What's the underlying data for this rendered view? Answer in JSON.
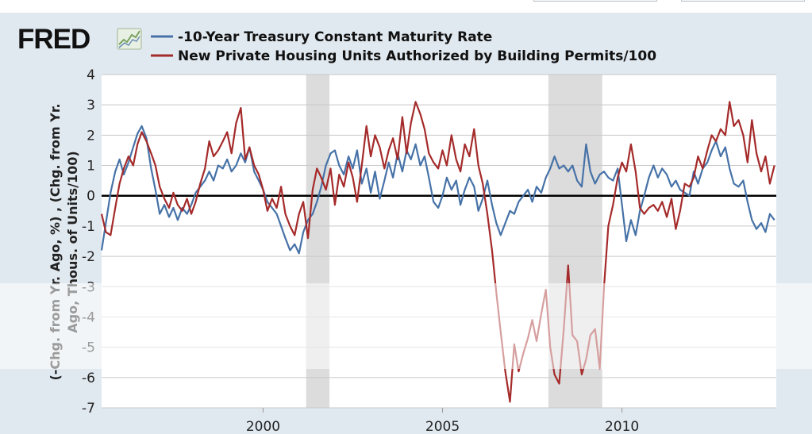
{
  "chart_data": {
    "type": "line",
    "title": "",
    "xlabel": "",
    "ylabel_lines": [
      "(-Chg. from Yr. Ago, %) , (Chg. from Yr.",
      "Ago, Thous. of Units/100)"
    ],
    "x_range": [
      1995.5,
      2014.3
    ],
    "ylim": [
      -7,
      4
    ],
    "yticks": [
      4,
      3,
      2,
      1,
      0,
      -1,
      -2,
      -3,
      -4,
      -5,
      -6,
      -7
    ],
    "xticks": [
      2000,
      2005,
      2010
    ],
    "xtick_labels": [
      "2000",
      "2005",
      "2010"
    ],
    "recessions": [
      [
        2001.2,
        2001.85
      ],
      [
        2007.95,
        2009.45
      ]
    ],
    "zero_line": true,
    "series": [
      {
        "name": "-10-Year Treasury Constant Maturity Rate",
        "color": "#4672a7",
        "points": [
          [
            1995.5,
            -1.8
          ],
          [
            1995.62,
            -0.9
          ],
          [
            1995.75,
            0.1
          ],
          [
            1995.88,
            0.8
          ],
          [
            1996.0,
            1.2
          ],
          [
            1996.12,
            0.7
          ],
          [
            1996.25,
            1.1
          ],
          [
            1996.38,
            1.6
          ],
          [
            1996.5,
            2.05
          ],
          [
            1996.62,
            2.3
          ],
          [
            1996.75,
            1.9
          ],
          [
            1996.88,
            0.9
          ],
          [
            1997.0,
            0.2
          ],
          [
            1997.12,
            -0.6
          ],
          [
            1997.25,
            -0.3
          ],
          [
            1997.38,
            -0.7
          ],
          [
            1997.5,
            -0.4
          ],
          [
            1997.62,
            -0.8
          ],
          [
            1997.75,
            -0.4
          ],
          [
            1997.88,
            -0.6
          ],
          [
            1998.0,
            -0.3
          ],
          [
            1998.12,
            0.1
          ],
          [
            1998.25,
            0.3
          ],
          [
            1998.38,
            0.5
          ],
          [
            1998.5,
            0.8
          ],
          [
            1998.62,
            0.5
          ],
          [
            1998.75,
            1.0
          ],
          [
            1998.88,
            0.9
          ],
          [
            1999.0,
            1.2
          ],
          [
            1999.12,
            0.8
          ],
          [
            1999.25,
            1.0
          ],
          [
            1999.38,
            1.4
          ],
          [
            1999.5,
            1.1
          ],
          [
            1999.62,
            1.6
          ],
          [
            1999.75,
            0.8
          ],
          [
            1999.88,
            0.5
          ],
          [
            2000.0,
            0.2
          ],
          [
            2000.12,
            -0.2
          ],
          [
            2000.25,
            -0.4
          ],
          [
            2000.38,
            -0.6
          ],
          [
            2000.5,
            -1.0
          ],
          [
            2000.62,
            -1.4
          ],
          [
            2000.75,
            -1.8
          ],
          [
            2000.88,
            -1.6
          ],
          [
            2001.0,
            -1.9
          ],
          [
            2001.12,
            -1.2
          ],
          [
            2001.25,
            -0.8
          ],
          [
            2001.38,
            -0.6
          ],
          [
            2001.5,
            -0.2
          ],
          [
            2001.62,
            0.3
          ],
          [
            2001.75,
            1.0
          ],
          [
            2001.88,
            1.4
          ],
          [
            2002.0,
            1.5
          ],
          [
            2002.12,
            1.0
          ],
          [
            2002.25,
            0.7
          ],
          [
            2002.38,
            1.3
          ],
          [
            2002.5,
            0.9
          ],
          [
            2002.62,
            1.5
          ],
          [
            2002.75,
            0.4
          ],
          [
            2002.88,
            0.9
          ],
          [
            2003.0,
            0.1
          ],
          [
            2003.12,
            0.8
          ],
          [
            2003.25,
            -0.1
          ],
          [
            2003.38,
            0.5
          ],
          [
            2003.5,
            1.1
          ],
          [
            2003.62,
            0.6
          ],
          [
            2003.75,
            1.4
          ],
          [
            2003.88,
            0.8
          ],
          [
            2004.0,
            1.5
          ],
          [
            2004.12,
            1.2
          ],
          [
            2004.25,
            1.7
          ],
          [
            2004.38,
            1.0
          ],
          [
            2004.5,
            1.3
          ],
          [
            2004.62,
            0.6
          ],
          [
            2004.75,
            -0.2
          ],
          [
            2004.88,
            -0.4
          ],
          [
            2005.0,
            0.0
          ],
          [
            2005.12,
            0.6
          ],
          [
            2005.25,
            0.2
          ],
          [
            2005.38,
            0.5
          ],
          [
            2005.5,
            -0.3
          ],
          [
            2005.62,
            0.2
          ],
          [
            2005.75,
            0.6
          ],
          [
            2005.88,
            0.3
          ],
          [
            2006.0,
            -0.5
          ],
          [
            2006.12,
            -0.1
          ],
          [
            2006.25,
            0.5
          ],
          [
            2006.38,
            -0.3
          ],
          [
            2006.5,
            -0.9
          ],
          [
            2006.62,
            -1.3
          ],
          [
            2006.75,
            -0.9
          ],
          [
            2006.88,
            -0.5
          ],
          [
            2007.0,
            -0.6
          ],
          [
            2007.12,
            -0.2
          ],
          [
            2007.25,
            0.0
          ],
          [
            2007.38,
            0.2
          ],
          [
            2007.5,
            -0.2
          ],
          [
            2007.62,
            0.3
          ],
          [
            2007.75,
            0.1
          ],
          [
            2007.88,
            0.6
          ],
          [
            2008.0,
            0.9
          ],
          [
            2008.12,
            1.3
          ],
          [
            2008.25,
            0.9
          ],
          [
            2008.38,
            1.0
          ],
          [
            2008.5,
            0.8
          ],
          [
            2008.62,
            1.0
          ],
          [
            2008.75,
            0.5
          ],
          [
            2008.88,
            0.3
          ],
          [
            2009.0,
            1.7
          ],
          [
            2009.12,
            0.8
          ],
          [
            2009.25,
            0.4
          ],
          [
            2009.38,
            0.7
          ],
          [
            2009.5,
            0.8
          ],
          [
            2009.62,
            0.6
          ],
          [
            2009.75,
            0.5
          ],
          [
            2009.88,
            0.9
          ],
          [
            2010.0,
            -0.3
          ],
          [
            2010.12,
            -1.5
          ],
          [
            2010.25,
            -0.8
          ],
          [
            2010.38,
            -1.3
          ],
          [
            2010.5,
            -0.5
          ],
          [
            2010.62,
            0.0
          ],
          [
            2010.75,
            0.6
          ],
          [
            2010.88,
            1.0
          ],
          [
            2011.0,
            0.6
          ],
          [
            2011.12,
            0.9
          ],
          [
            2011.25,
            0.7
          ],
          [
            2011.38,
            0.3
          ],
          [
            2011.5,
            0.5
          ],
          [
            2011.62,
            0.2
          ],
          [
            2011.75,
            0.1
          ],
          [
            2011.88,
            0.0
          ],
          [
            2012.0,
            0.8
          ],
          [
            2012.12,
            0.4
          ],
          [
            2012.25,
            0.9
          ],
          [
            2012.38,
            1.1
          ],
          [
            2012.5,
            1.5
          ],
          [
            2012.62,
            1.8
          ],
          [
            2012.75,
            1.3
          ],
          [
            2012.88,
            1.6
          ],
          [
            2013.0,
            0.9
          ],
          [
            2013.12,
            0.4
          ],
          [
            2013.25,
            0.3
          ],
          [
            2013.38,
            0.5
          ],
          [
            2013.5,
            -0.2
          ],
          [
            2013.62,
            -0.8
          ],
          [
            2013.75,
            -1.1
          ],
          [
            2013.88,
            -0.9
          ],
          [
            2014.0,
            -1.2
          ],
          [
            2014.12,
            -0.6
          ],
          [
            2014.25,
            -0.8
          ]
        ]
      },
      {
        "name": "New Private Housing Units Authorized by Building Permits/100",
        "color": "#a52a2a",
        "points": [
          [
            1995.5,
            -0.6
          ],
          [
            1995.62,
            -1.2
          ],
          [
            1995.75,
            -1.3
          ],
          [
            1995.88,
            -0.4
          ],
          [
            1996.0,
            0.4
          ],
          [
            1996.12,
            0.9
          ],
          [
            1996.25,
            1.3
          ],
          [
            1996.38,
            1.0
          ],
          [
            1996.5,
            1.7
          ],
          [
            1996.62,
            2.1
          ],
          [
            1996.75,
            1.8
          ],
          [
            1996.88,
            1.4
          ],
          [
            1997.0,
            1.0
          ],
          [
            1997.12,
            0.3
          ],
          [
            1997.25,
            -0.1
          ],
          [
            1997.38,
            -0.4
          ],
          [
            1997.5,
            0.1
          ],
          [
            1997.62,
            -0.3
          ],
          [
            1997.75,
            -0.5
          ],
          [
            1997.88,
            -0.1
          ],
          [
            1998.0,
            -0.6
          ],
          [
            1998.12,
            -0.2
          ],
          [
            1998.25,
            0.4
          ],
          [
            1998.38,
            0.9
          ],
          [
            1998.5,
            1.8
          ],
          [
            1998.62,
            1.3
          ],
          [
            1998.75,
            1.5
          ],
          [
            1998.88,
            1.8
          ],
          [
            1999.0,
            2.1
          ],
          [
            1999.12,
            1.4
          ],
          [
            1999.25,
            2.4
          ],
          [
            1999.38,
            2.9
          ],
          [
            1999.5,
            1.2
          ],
          [
            1999.62,
            1.6
          ],
          [
            1999.75,
            1.0
          ],
          [
            1999.88,
            0.7
          ],
          [
            2000.0,
            0.2
          ],
          [
            2000.12,
            -0.5
          ],
          [
            2000.25,
            -0.1
          ],
          [
            2000.38,
            -0.4
          ],
          [
            2000.5,
            0.3
          ],
          [
            2000.62,
            -0.6
          ],
          [
            2000.75,
            -1.0
          ],
          [
            2000.88,
            -1.3
          ],
          [
            2001.0,
            -0.6
          ],
          [
            2001.12,
            -0.2
          ],
          [
            2001.25,
            -1.4
          ],
          [
            2001.38,
            0.2
          ],
          [
            2001.5,
            0.9
          ],
          [
            2001.62,
            0.6
          ],
          [
            2001.75,
            0.2
          ],
          [
            2001.88,
            0.9
          ],
          [
            2002.0,
            -0.3
          ],
          [
            2002.12,
            0.7
          ],
          [
            2002.25,
            0.3
          ],
          [
            2002.38,
            1.1
          ],
          [
            2002.5,
            0.6
          ],
          [
            2002.62,
            -0.2
          ],
          [
            2002.75,
            1.0
          ],
          [
            2002.88,
            2.3
          ],
          [
            2003.0,
            1.3
          ],
          [
            2003.12,
            2.0
          ],
          [
            2003.25,
            1.6
          ],
          [
            2003.38,
            0.9
          ],
          [
            2003.5,
            1.5
          ],
          [
            2003.62,
            1.9
          ],
          [
            2003.75,
            1.2
          ],
          [
            2003.88,
            2.6
          ],
          [
            2004.0,
            1.4
          ],
          [
            2004.12,
            2.4
          ],
          [
            2004.25,
            3.1
          ],
          [
            2004.38,
            2.7
          ],
          [
            2004.5,
            2.2
          ],
          [
            2004.62,
            1.4
          ],
          [
            2004.75,
            1.1
          ],
          [
            2004.88,
            0.9
          ],
          [
            2005.0,
            1.5
          ],
          [
            2005.12,
            1.0
          ],
          [
            2005.25,
            2.0
          ],
          [
            2005.38,
            1.2
          ],
          [
            2005.5,
            0.8
          ],
          [
            2005.62,
            1.7
          ],
          [
            2005.75,
            1.3
          ],
          [
            2005.88,
            2.2
          ],
          [
            2006.0,
            1.0
          ],
          [
            2006.12,
            0.4
          ],
          [
            2006.25,
            -0.6
          ],
          [
            2006.38,
            -1.8
          ],
          [
            2006.5,
            -3.2
          ],
          [
            2006.62,
            -4.5
          ],
          [
            2006.75,
            -5.8
          ],
          [
            2006.88,
            -6.8
          ],
          [
            2007.0,
            -4.9
          ],
          [
            2007.12,
            -5.8
          ],
          [
            2007.25,
            -5.2
          ],
          [
            2007.38,
            -4.7
          ],
          [
            2007.5,
            -4.1
          ],
          [
            2007.62,
            -4.8
          ],
          [
            2007.75,
            -3.9
          ],
          [
            2007.88,
            -3.1
          ],
          [
            2008.0,
            -5.0
          ],
          [
            2008.12,
            -5.9
          ],
          [
            2008.25,
            -6.2
          ],
          [
            2008.38,
            -4.4
          ],
          [
            2008.5,
            -2.3
          ],
          [
            2008.62,
            -4.6
          ],
          [
            2008.75,
            -4.8
          ],
          [
            2008.88,
            -5.9
          ],
          [
            2009.0,
            -5.4
          ],
          [
            2009.12,
            -4.6
          ],
          [
            2009.25,
            -4.4
          ],
          [
            2009.38,
            -5.7
          ],
          [
            2009.5,
            -3.0
          ],
          [
            2009.62,
            -1.0
          ],
          [
            2009.75,
            -0.3
          ],
          [
            2009.88,
            0.6
          ],
          [
            2010.0,
            1.1
          ],
          [
            2010.12,
            0.8
          ],
          [
            2010.25,
            1.7
          ],
          [
            2010.38,
            0.8
          ],
          [
            2010.5,
            -0.4
          ],
          [
            2010.62,
            -0.6
          ],
          [
            2010.75,
            -0.4
          ],
          [
            2010.88,
            -0.3
          ],
          [
            2011.0,
            -0.5
          ],
          [
            2011.12,
            -0.2
          ],
          [
            2011.25,
            -0.7
          ],
          [
            2011.38,
            -0.1
          ],
          [
            2011.5,
            -1.1
          ],
          [
            2011.62,
            -0.5
          ],
          [
            2011.75,
            0.4
          ],
          [
            2011.88,
            0.3
          ],
          [
            2012.0,
            0.6
          ],
          [
            2012.12,
            1.3
          ],
          [
            2012.25,
            0.9
          ],
          [
            2012.38,
            1.5
          ],
          [
            2012.5,
            2.0
          ],
          [
            2012.62,
            1.8
          ],
          [
            2012.75,
            2.2
          ],
          [
            2012.88,
            2.0
          ],
          [
            2013.0,
            3.1
          ],
          [
            2013.12,
            2.3
          ],
          [
            2013.25,
            2.5
          ],
          [
            2013.38,
            2.0
          ],
          [
            2013.5,
            1.1
          ],
          [
            2013.62,
            2.5
          ],
          [
            2013.75,
            1.4
          ],
          [
            2013.88,
            0.8
          ],
          [
            2014.0,
            1.3
          ],
          [
            2014.12,
            0.4
          ],
          [
            2014.25,
            1.0
          ]
        ]
      }
    ]
  },
  "logo": {
    "text": "FRED"
  }
}
